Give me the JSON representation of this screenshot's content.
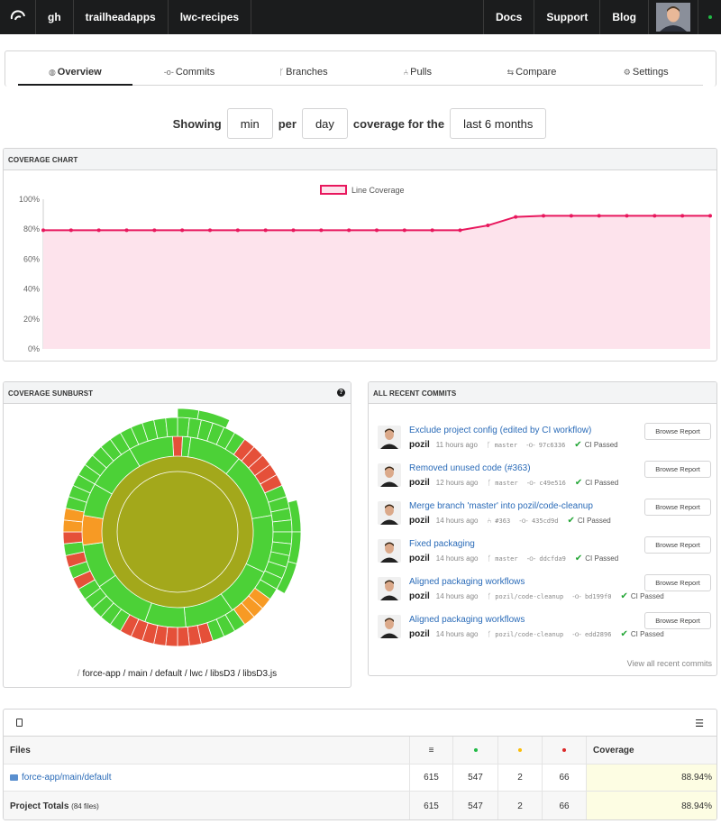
{
  "nav": {
    "items": [
      "gh",
      "trailheadapps",
      "lwc-recipes"
    ],
    "right": [
      "Docs",
      "Support",
      "Blog"
    ]
  },
  "tabs": [
    {
      "label": "Overview",
      "icon": "dashboard-icon"
    },
    {
      "label": "Commits",
      "icon": "commit-icon"
    },
    {
      "label": "Branches",
      "icon": "branch-icon"
    },
    {
      "label": "Pulls",
      "icon": "pull-request-icon"
    },
    {
      "label": "Compare",
      "icon": "compare-icon"
    },
    {
      "label": "Settings",
      "icon": "gear-icon"
    }
  ],
  "showing": {
    "prefix": "Showing",
    "metric": "min",
    "per": "per",
    "period": "day",
    "coverage_for": "coverage for the",
    "range": "last 6 months"
  },
  "coverage_chart": {
    "header": "COVERAGE CHART"
  },
  "chart_data": {
    "type": "area",
    "title": "",
    "legend": [
      "Line Coverage"
    ],
    "legend_position": "top",
    "xlabel": "",
    "ylabel": "",
    "ylim": [
      0,
      100
    ],
    "yticks": [
      "0%",
      "20%",
      "40%",
      "60%",
      "80%",
      "100%"
    ],
    "grid": false,
    "series": [
      {
        "name": "Line Coverage",
        "color": "#e8175d",
        "values": [
          79.3,
          79.3,
          79.3,
          79.3,
          79.3,
          79.3,
          79.3,
          79.3,
          79.3,
          79.3,
          79.3,
          79.3,
          79.3,
          79.3,
          79.3,
          79.3,
          82.5,
          88.2,
          88.9,
          88.9,
          88.9,
          88.9,
          88.9,
          88.9,
          88.9
        ]
      }
    ]
  },
  "sunburst": {
    "header": "COVERAGE SUNBURST",
    "breadcrumb_sep": "/",
    "breadcrumb": "force-app / main / default / lwc / libsD3 / libsD3.js",
    "colors": {
      "high": "#4cd137",
      "mid": "#f79a24",
      "low": "#e55039",
      "center": "#a3a81b"
    }
  },
  "commits": {
    "header": "ALL RECENT COMMITS",
    "browse_label": "Browse Report",
    "view_all": "View all recent commits",
    "items": [
      {
        "message": "Exclude project config (edited by CI workflow)",
        "author": "pozil",
        "time": "11 hours ago",
        "ref": "master",
        "sha": "97c6336",
        "status": "CI Passed",
        "ref_icon": "branch-icon"
      },
      {
        "message": "Removed unused code (#363)",
        "author": "pozil",
        "time": "12 hours ago",
        "ref": "master",
        "sha": "c49e516",
        "status": "CI Passed",
        "ref_icon": "branch-icon"
      },
      {
        "message": "Merge branch 'master' into pozil/code-cleanup",
        "author": "pozil",
        "time": "14 hours ago",
        "ref": "#363",
        "sha": "435cd9d",
        "status": "CI Passed",
        "ref_icon": "pull-request-icon"
      },
      {
        "message": "Fixed packaging",
        "author": "pozil",
        "time": "14 hours ago",
        "ref": "master",
        "sha": "ddcfda9",
        "status": "CI Passed",
        "ref_icon": "branch-icon"
      },
      {
        "message": "Aligned packaging workflows",
        "author": "pozil",
        "time": "14 hours ago",
        "ref": "pozil/code-cleanup",
        "sha": "bd199f0",
        "status": "CI Passed",
        "ref_icon": "branch-icon"
      },
      {
        "message": "Aligned packaging workflows",
        "author": "pozil",
        "time": "14 hours ago",
        "ref": "pozil/code-cleanup",
        "sha": "edd2896",
        "status": "CI Passed",
        "ref_icon": "branch-icon"
      }
    ]
  },
  "files": {
    "headers": {
      "name": "Files",
      "coverage": "Coverage"
    },
    "header_icons": [
      "lines-icon",
      "hit-dot-green",
      "partial-dot-yellow",
      "miss-dot-red"
    ],
    "dot_colors": {
      "hit": "#21ba45",
      "partial": "#fbbd08",
      "miss": "#db2828"
    },
    "rows": [
      {
        "name": "force-app/main/default",
        "lines": "615",
        "hits": "547",
        "partials": "2",
        "misses": "66",
        "coverage": "88.94%"
      }
    ],
    "totals": {
      "name": "Project Totals",
      "note": "(84 files)",
      "lines": "615",
      "hits": "547",
      "partials": "2",
      "misses": "66",
      "coverage": "88.94%"
    }
  }
}
